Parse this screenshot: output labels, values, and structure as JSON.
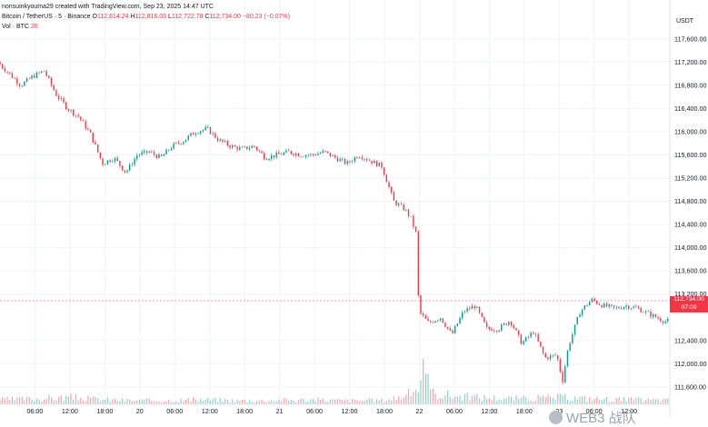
{
  "header": {
    "author_line": "nonsuinkyouma29 created with TradingView.com, Sep 23, 2025 14:47 UTC",
    "symbol": "Bitcoin / TetherUS · 5 · Binance",
    "o_label": "O",
    "o_value": "112,814.24",
    "h_label": "H",
    "h_value": "112,816.03",
    "l_label": "L",
    "l_value": "112,722.78",
    "c_label": "C",
    "c_value": "112,734.00",
    "change": "−80.23 (−0.07%)",
    "vol_label": "Vol · BTC",
    "vol_value": "20"
  },
  "price_tag": {
    "price": "112,734.00",
    "countdown": "07:09"
  },
  "watermark": "WEB3 战队",
  "colors": {
    "up": "#089981",
    "down": "#f23645",
    "grid": "#f0f3fa",
    "axis_text": "#131722"
  },
  "chart_data": {
    "type": "line",
    "unit": "USDT",
    "y_ticks": [
      "117,600.00",
      "117,200.00",
      "116,800.00",
      "116,400.00",
      "116,000.00",
      "115,600.00",
      "115,200.00",
      "114,800.00",
      "114,400.00",
      "114,000.00",
      "113,600.00",
      "113,200.00",
      "112,400.00",
      "112,000.00",
      "111,600.00"
    ],
    "y_tick_values": [
      117600,
      117200,
      116800,
      116400,
      116000,
      115600,
      115200,
      114800,
      114400,
      114000,
      113600,
      113200,
      112400,
      112000,
      111600
    ],
    "ylim": [
      111300,
      117800
    ],
    "x_ticks": [
      "06:00",
      "12:00",
      "18:00",
      "20",
      "06:00",
      "12:00",
      "18:00",
      "21",
      "06:00",
      "12:00",
      "18:00",
      "22",
      "06:00",
      "12:00",
      "18:00",
      "23",
      "06:00",
      "12:00"
    ],
    "x_tick_hours": [
      6,
      12,
      18,
      24,
      30,
      36,
      42,
      48,
      54,
      60,
      66,
      72,
      78,
      84,
      90,
      96,
      102,
      108
    ],
    "xlim_hours": [
      0,
      115
    ],
    "x_origin_label": "Sep 19, 00:00",
    "series": [
      {
        "x_hours": [
          0,
          2,
          4,
          6,
          8,
          10,
          12,
          14,
          16,
          18,
          20,
          22,
          24,
          26,
          28,
          30,
          32,
          34,
          36,
          38,
          40,
          42,
          44,
          46,
          48,
          50,
          52,
          54,
          56,
          58,
          60,
          62,
          64,
          66,
          68,
          70,
          71,
          72,
          72.3,
          74,
          76,
          78,
          80,
          82,
          84,
          86,
          88,
          90,
          92,
          94,
          96,
          97,
          98,
          100,
          102,
          104,
          106,
          108,
          110,
          112,
          114.5
        ],
        "values": [
          117200,
          117000,
          116800,
          116950,
          117050,
          116650,
          116400,
          116250,
          115950,
          115450,
          115550,
          115300,
          115600,
          115650,
          115550,
          115750,
          115850,
          116000,
          116050,
          115850,
          115750,
          115700,
          115750,
          115550,
          115600,
          115650,
          115600,
          115600,
          115650,
          115550,
          115450,
          115600,
          115500,
          115400,
          114800,
          114650,
          114500,
          114200,
          112900,
          112700,
          112800,
          112500,
          112900,
          113000,
          112600,
          112600,
          112750,
          112350,
          112550,
          112100,
          112150,
          111700,
          112300,
          112900,
          113100,
          113000,
          112950,
          113000,
          112950,
          112850,
          112734
        ]
      }
    ],
    "volume": {
      "label": "Vol · BTC",
      "note": "relative volume",
      "x_hours": [
        0,
        6,
        12,
        18,
        24,
        30,
        36,
        42,
        48,
        54,
        60,
        66,
        70,
        72,
        72.5,
        74,
        78,
        84,
        90,
        96,
        102,
        108,
        114
      ],
      "values": [
        10,
        12,
        15,
        10,
        8,
        9,
        10,
        8,
        9,
        10,
        8,
        9,
        20,
        40,
        75,
        25,
        18,
        14,
        12,
        15,
        12,
        10,
        9
      ]
    }
  }
}
